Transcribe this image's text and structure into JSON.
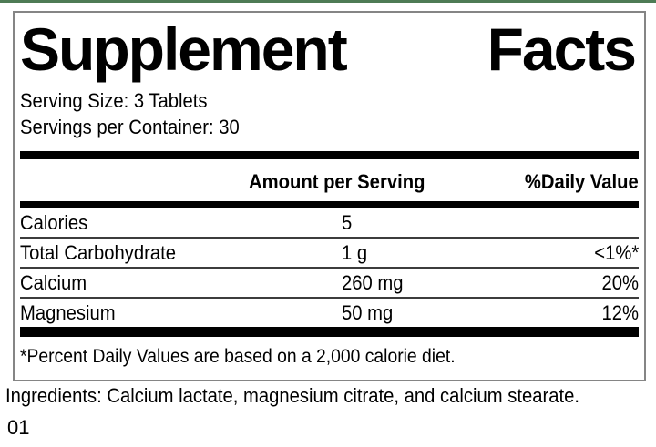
{
  "colors": {
    "top_strip": "#4e7b55",
    "panel_border": "#858585",
    "rule": "#000000",
    "separator": "#3c3c3c",
    "text": "#000000"
  },
  "panel": {
    "title_left": "Supplement",
    "title_right": "Facts",
    "serving_size": "Serving Size: 3 Tablets",
    "servings_per_container": "Servings per Container: 30",
    "columns": {
      "amount_header": "Amount per Serving",
      "daily_value_header": "%Daily Value"
    },
    "rows": [
      {
        "name": "Calories",
        "amount": "5",
        "dv": ""
      },
      {
        "name": "Total Carbohydrate",
        "amount": "1 g",
        "dv": "<1%*"
      },
      {
        "name": "Calcium",
        "amount": "260 mg",
        "dv": "20%"
      },
      {
        "name": "Magnesium",
        "amount": "50 mg",
        "dv": "12%"
      }
    ],
    "footnote": "*Percent Daily Values are based on a 2,000 calorie diet."
  },
  "ingredients": "Ingredients: Calcium lactate, magnesium citrate, and calcium stearate.",
  "product_code": "01"
}
